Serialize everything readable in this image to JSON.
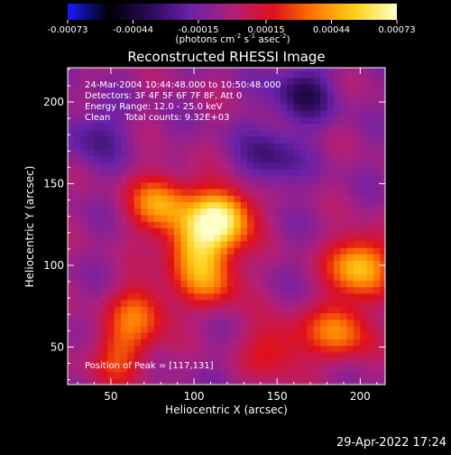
{
  "colorbar": {
    "ticks": [
      "-0.00073",
      "-0.00044",
      "-0.00015",
      "0.00015",
      "0.00044",
      "0.00073"
    ],
    "tick_values": [
      -0.00073,
      -0.00044,
      -0.00015,
      0.00015,
      0.00044,
      0.00073
    ],
    "range": [
      -0.00073,
      0.00073
    ],
    "colors": [
      "#1a1aff",
      "#000000",
      "#2b0a5a",
      "#6a22aa",
      "#b0207a",
      "#e0101a",
      "#ff7a00",
      "#ffd21a",
      "#ffffc8"
    ]
  },
  "units_pre": "(photons cm",
  "units_exp1": "-2",
  "units_mid": " s",
  "units_exp2": "-1",
  "units_mid2": " asec",
  "units_exp3": "-2",
  "units_post": ")",
  "title": "Reconstructed RHESSI Image",
  "annotations": {
    "time": "24-Mar-2004 10:44:48.000 to 10:50:48.000",
    "detectors": "Detectors: 3F 4F 5F 6F 7F 8F, Att 0",
    "energy": "Energy Range: 12.0 - 25.0 keV",
    "clean": "Clean     Total counts: 9.32E+03",
    "peak": "Position of Peak = [117,131]"
  },
  "footer_date": "29-Apr-2022 17:24",
  "chart_data": {
    "type": "heatmap",
    "title": "Reconstructed RHESSI Image",
    "xlabel": "Heliocentric X (arcsec)",
    "ylabel": "Heliocentric Y (arcsec)",
    "xlim": [
      24,
      215
    ],
    "ylim": [
      27,
      221
    ],
    "x_ticks": [
      50,
      100,
      150,
      200
    ],
    "y_ticks": [
      50,
      100,
      150,
      200
    ],
    "x_tick_labels": [
      "50",
      "100",
      "150",
      "200"
    ],
    "y_tick_labels": [
      "50",
      "100",
      "150",
      "200"
    ],
    "peak": [
      117,
      131
    ],
    "sources_approx": [
      {
        "x": 117,
        "y": 130,
        "value": 0.00073
      },
      {
        "x": 80,
        "y": 138,
        "value": 0.0005
      },
      {
        "x": 100,
        "y": 112,
        "value": 0.00042
      },
      {
        "x": 110,
        "y": 92,
        "value": 0.0004
      },
      {
        "x": 68,
        "y": 72,
        "value": 0.00038
      },
      {
        "x": 200,
        "y": 100,
        "value": 0.0006
      },
      {
        "x": 188,
        "y": 60,
        "value": 0.00044
      },
      {
        "x": 150,
        "y": 50,
        "value": 0.0003
      },
      {
        "x": 55,
        "y": 45,
        "value": 0.00032
      },
      {
        "x": 165,
        "y": 205,
        "value": -0.0003
      },
      {
        "x": 145,
        "y": 165,
        "value": -0.00025
      },
      {
        "x": 40,
        "y": 180,
        "value": -0.0002
      }
    ]
  }
}
